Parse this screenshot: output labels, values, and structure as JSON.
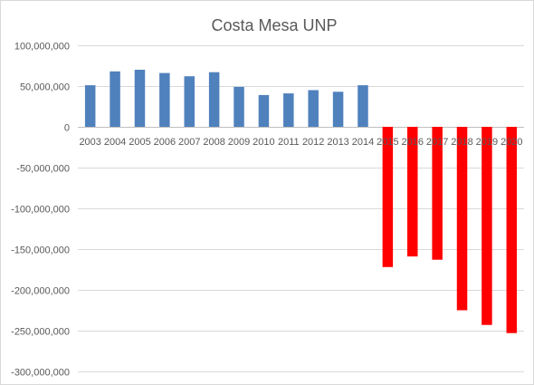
{
  "chart_data": {
    "type": "bar",
    "title": "Costa Mesa UNP",
    "xlabel": "",
    "ylabel": "",
    "categories": [
      "2003",
      "2004",
      "2005",
      "2006",
      "2007",
      "2008",
      "2009",
      "2010",
      "2011",
      "2012",
      "2013",
      "2014",
      "2015",
      "2016",
      "2017",
      "2018",
      "2019",
      "2020"
    ],
    "values": [
      51000000,
      68000000,
      70000000,
      66000000,
      62000000,
      67000000,
      49000000,
      39000000,
      41000000,
      45000000,
      43000000,
      51000000,
      -172000000,
      -159000000,
      -163000000,
      -225000000,
      -243000000,
      -253000000
    ],
    "ylim": [
      -300000000,
      100000000
    ],
    "yticks": [
      100000000,
      50000000,
      0,
      -50000000,
      -100000000,
      -150000000,
      -200000000,
      -250000000,
      -300000000
    ],
    "ytick_labels": [
      "100,000,000",
      "50,000,000",
      "0",
      "-50,000,000",
      "-100,000,000",
      "-150,000,000",
      "-200,000,000",
      "-250,000,000",
      "-300,000,000"
    ],
    "grid": true,
    "legend": "none",
    "colors": {
      "positive": "#4f81bd",
      "negative": "#ff0000"
    }
  }
}
